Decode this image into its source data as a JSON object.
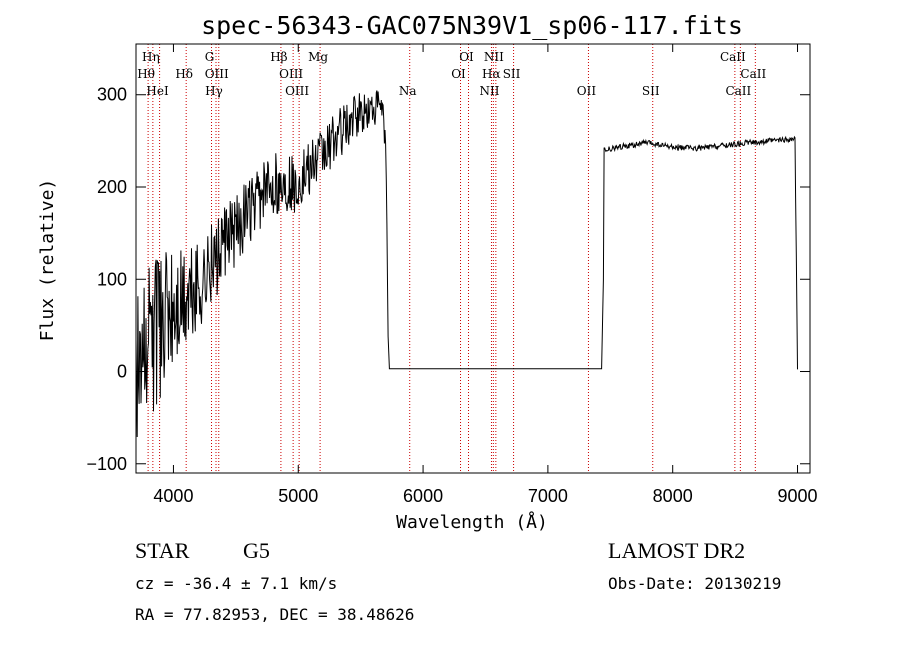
{
  "chart_data": {
    "type": "line",
    "title": "spec-56343-GAC075N39V1_sp06-117.fits",
    "xlabel": "Wavelength (Å)",
    "ylabel": "Flux (relative)",
    "xlim": [
      3700,
      9100
    ],
    "ylim": [
      -110,
      355
    ],
    "x_ticks": [
      4000,
      5000,
      6000,
      7000,
      8000,
      9000
    ],
    "y_ticks": [
      -100,
      0,
      100,
      200,
      300
    ],
    "line_color": "#000000",
    "marker_color": "#cc0000",
    "spectral_lines": [
      {
        "label": "Hη",
        "wavelength": 3835,
        "row": 0
      },
      {
        "label": "Hθ",
        "wavelength": 3797,
        "row": 1
      },
      {
        "label": "HeI",
        "wavelength": 3889,
        "row": 2
      },
      {
        "label": "Hδ",
        "wavelength": 4102,
        "row": 1
      },
      {
        "label": "G",
        "wavelength": 4305,
        "row": 0
      },
      {
        "label": "OIII",
        "wavelength": 4363,
        "row": 1
      },
      {
        "label": "Hγ",
        "wavelength": 4341,
        "row": 2
      },
      {
        "label": "Hβ",
        "wavelength": 4861,
        "row": 0
      },
      {
        "label": "OIII",
        "wavelength": 4959,
        "row": 1
      },
      {
        "label": "OIII",
        "wavelength": 5007,
        "row": 2
      },
      {
        "label": "Mg",
        "wavelength": 5175,
        "row": 0
      },
      {
        "label": "Na",
        "wavelength": 5893,
        "row": 2
      },
      {
        "label": "OI",
        "wavelength": 6364,
        "row": 0
      },
      {
        "label": "OI",
        "wavelength": 6300,
        "row": 1
      },
      {
        "label": "NII",
        "wavelength": 6583,
        "row": 0
      },
      {
        "label": "Hα",
        "wavelength": 6563,
        "row": 1
      },
      {
        "label": "SII",
        "wavelength": 6725,
        "row": 1
      },
      {
        "label": "NII",
        "wavelength": 6548,
        "row": 2
      },
      {
        "label": "OII",
        "wavelength": 7325,
        "row": 2
      },
      {
        "label": "SII",
        "wavelength": 7840,
        "row": 2
      },
      {
        "label": "CaII",
        "wavelength": 8498,
        "row": 0
      },
      {
        "label": "CaII",
        "wavelength": 8662,
        "row": 1
      },
      {
        "label": "CaII",
        "wavelength": 8542,
        "row": 2
      }
    ],
    "continuum": [
      [
        3700,
        10
      ],
      [
        3800,
        30
      ],
      [
        3900,
        50
      ],
      [
        4000,
        65
      ],
      [
        4100,
        80
      ],
      [
        4200,
        95
      ],
      [
        4300,
        115
      ],
      [
        4400,
        135
      ],
      [
        4500,
        155
      ],
      [
        4600,
        170
      ],
      [
        4700,
        190
      ],
      [
        4800,
        205
      ],
      [
        4900,
        200
      ],
      [
        5000,
        205
      ],
      [
        5100,
        220
      ],
      [
        5200,
        235
      ],
      [
        5300,
        255
      ],
      [
        5400,
        268
      ],
      [
        5500,
        278
      ],
      [
        5600,
        285
      ],
      [
        5650,
        290
      ],
      [
        5680,
        280
      ],
      [
        5700,
        240
      ],
      [
        5710,
        160
      ],
      [
        5720,
        40
      ],
      [
        5730,
        3
      ],
      [
        7400,
        3
      ],
      [
        7430,
        3
      ],
      [
        7445,
        100
      ],
      [
        7450,
        240
      ],
      [
        7600,
        244
      ],
      [
        7800,
        248
      ],
      [
        8000,
        243
      ],
      [
        8200,
        242
      ],
      [
        8400,
        245
      ],
      [
        8600,
        248
      ],
      [
        8800,
        250
      ],
      [
        8980,
        252
      ],
      [
        9000,
        0
      ]
    ],
    "noise_amplitude": [
      [
        3700,
        90
      ],
      [
        3950,
        75
      ],
      [
        4300,
        45
      ],
      [
        4700,
        35
      ],
      [
        5100,
        30
      ],
      [
        5500,
        25
      ],
      [
        5700,
        15
      ],
      [
        5730,
        0
      ],
      [
        7440,
        0
      ],
      [
        7450,
        3
      ],
      [
        9000,
        3
      ]
    ]
  },
  "footer": {
    "object_type": "STAR",
    "subclass": "G5",
    "survey": "LAMOST DR2",
    "redshift": "cz = -36.4 ± 7.1 km/s",
    "obs_date": "Obs-Date: 20130219",
    "coords": "RA =  77.82953, DEC =  38.48626"
  }
}
